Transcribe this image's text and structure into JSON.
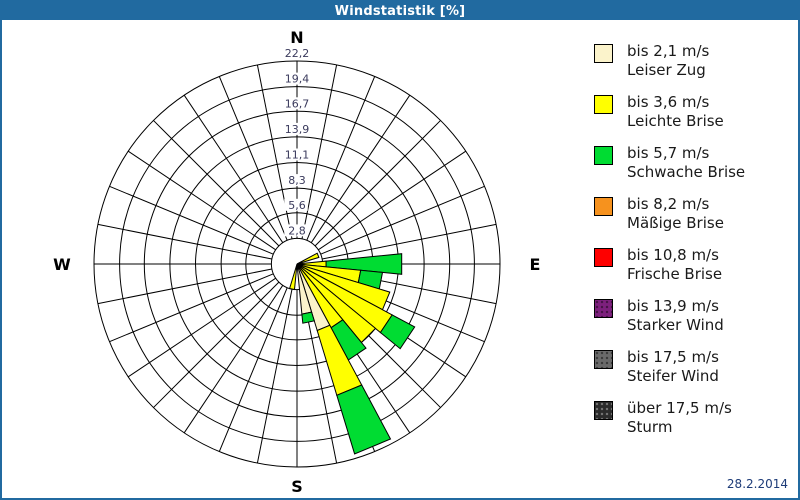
{
  "window": {
    "title": "Windstatistik [%]",
    "date": "28.2.2014"
  },
  "colors": {
    "frame": "#216AA0",
    "titlebar": "#216AA0",
    "title_text": "#FFFFFF",
    "grid": "#000000",
    "ring_label": "#3A3A5C",
    "compass_text": "#000000",
    "date_text": "#1E3C78",
    "cream": "#FBF3CB",
    "yellow": "#FFFF00",
    "green": "#00DC32",
    "orange": "#F6921E",
    "red": "#FE0000",
    "purple": "#7D207D",
    "gray": "#6A6A6A",
    "dark": "#2B2B2B"
  },
  "legend": {
    "items": [
      {
        "color_key": "cream",
        "color": "#FBF3CB",
        "speed": "bis 2,1 m/s",
        "name": "Leiser Zug",
        "texture": "none"
      },
      {
        "color_key": "yellow",
        "color": "#FFFF00",
        "speed": "bis 3,6 m/s",
        "name": "Leichte Brise",
        "texture": "none"
      },
      {
        "color_key": "green",
        "color": "#00DC32",
        "speed": "bis 5,7 m/s",
        "name": "Schwache Brise",
        "texture": "none"
      },
      {
        "color_key": "orange",
        "color": "#F6921E",
        "speed": "bis 8,2 m/s",
        "name": "Mäßige Brise",
        "texture": "none"
      },
      {
        "color_key": "red",
        "color": "#FE0000",
        "speed": "bis 10,8 m/s",
        "name": "Frische Brise",
        "texture": "none"
      },
      {
        "color_key": "purple",
        "color": "#7D207D",
        "speed": "bis 13,9 m/s",
        "name": "Starker Wind",
        "texture": "dark"
      },
      {
        "color_key": "gray",
        "color": "#6A6A6A",
        "speed": "bis 17,5 m/s",
        "name": "Steifer Wind",
        "texture": "dark"
      },
      {
        "color_key": "dark",
        "color": "#2B2B2B",
        "speed": "über 17,5 m/s",
        "name": "Sturm",
        "texture": "light"
      }
    ]
  },
  "chart_data": {
    "type": "bar",
    "subtype": "wind-rose-polar-stacked-bar",
    "title": "Windstatistik [%]",
    "units": "%",
    "compass": {
      "n": "N",
      "e": "E",
      "s": "S",
      "w": "W"
    },
    "ring_labels": [
      "2,8",
      "5,6",
      "8,3",
      "11,1",
      "13,9",
      "16,7",
      "19,4",
      "22,2"
    ],
    "ring_values_pct": [
      2.8,
      5.6,
      8.3,
      11.1,
      13.9,
      16.7,
      19.4,
      22.2
    ],
    "max_pct": 22.2,
    "grid_sector_deg": 11.25,
    "spoke_count": 32,
    "legend_position": "right",
    "classes_shown_in_data": [
      "bis 2,1 m/s Leiser Zug",
      "bis 3,6 m/s Leichte Brise",
      "bis 5,7 m/s Schwache Brise"
    ],
    "petals_note": "cumulative end radius in percent per speed class, direction in degrees clockwise from North",
    "petals": [
      {
        "direction_deg": 67.5,
        "cream": 0,
        "yellow": 2.5,
        "green": 2.5
      },
      {
        "direction_deg": 90.0,
        "cream": 0,
        "yellow": 3.2,
        "green": 11.5
      },
      {
        "direction_deg": 101.25,
        "cream": 0,
        "yellow": 7.0,
        "green": 9.4
      },
      {
        "direction_deg": 112.5,
        "cream": 0,
        "yellow": 10.6,
        "green": 10.6
      },
      {
        "direction_deg": 123.75,
        "cream": 0,
        "yellow": 11.8,
        "green": 14.6
      },
      {
        "direction_deg": 135.0,
        "cream": 0,
        "yellow": 11.1,
        "green": 11.1
      },
      {
        "direction_deg": 146.25,
        "cream": 0,
        "yellow": 7.9,
        "green": 11.9
      },
      {
        "direction_deg": 157.5,
        "cream": 7.6,
        "yellow": 15.0,
        "green": 21.7
      },
      {
        "direction_deg": 168.75,
        "cream": 5.5,
        "yellow": 5.5,
        "green": 6.5
      },
      {
        "direction_deg": 191.25,
        "cream": 0,
        "yellow": 2.8,
        "green": 2.8
      }
    ]
  }
}
